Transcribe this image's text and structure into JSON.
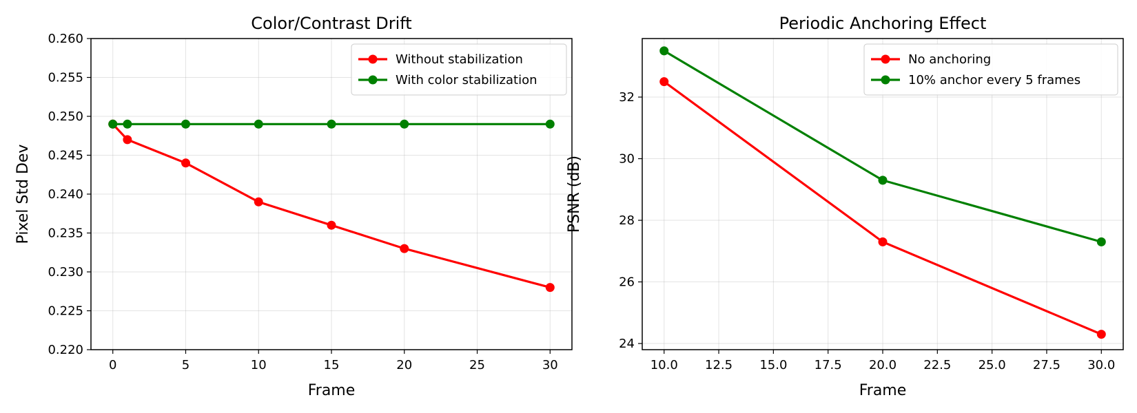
{
  "chart_data": [
    {
      "type": "line",
      "title": "Color/Contrast Drift",
      "xlabel": "Frame",
      "ylabel": "Pixel Std Dev",
      "xlim": [
        -1.5,
        31.5
      ],
      "ylim": [
        0.22,
        0.26
      ],
      "xticks": [
        0,
        5,
        10,
        15,
        20,
        25,
        30
      ],
      "xtick_labels": [
        "0",
        "5",
        "10",
        "15",
        "20",
        "25",
        "30"
      ],
      "yticks": [
        0.22,
        0.225,
        0.23,
        0.235,
        0.24,
        0.245,
        0.25,
        0.255,
        0.26
      ],
      "ytick_labels": [
        "0.220",
        "0.225",
        "0.230",
        "0.235",
        "0.240",
        "0.245",
        "0.250",
        "0.255",
        "0.260"
      ],
      "grid": true,
      "legend_position": "top-right",
      "series": [
        {
          "name": "Without stabilization",
          "color": "#ff0000",
          "x": [
            0,
            1,
            5,
            10,
            15,
            20,
            30
          ],
          "y": [
            0.249,
            0.247,
            0.244,
            0.239,
            0.236,
            0.233,
            0.228
          ]
        },
        {
          "name": "With color stabilization",
          "color": "#008000",
          "x": [
            0,
            1,
            5,
            10,
            15,
            20,
            30
          ],
          "y": [
            0.249,
            0.249,
            0.249,
            0.249,
            0.249,
            0.249,
            0.249
          ]
        }
      ]
    },
    {
      "type": "line",
      "title": "Periodic Anchoring Effect",
      "xlabel": "Frame",
      "ylabel": "PSNR (dB)",
      "xlim": [
        9.0,
        31.0
      ],
      "ylim": [
        23.8,
        33.9
      ],
      "xticks": [
        10,
        12.5,
        15,
        17.5,
        20,
        22.5,
        25,
        27.5,
        30
      ],
      "xtick_labels": [
        "10.0",
        "12.5",
        "15.0",
        "17.5",
        "20.0",
        "22.5",
        "25.0",
        "27.5",
        "30.0"
      ],
      "yticks": [
        24,
        26,
        28,
        30,
        32
      ],
      "ytick_labels": [
        "24",
        "26",
        "28",
        "30",
        "32"
      ],
      "grid": true,
      "legend_position": "top-right",
      "series": [
        {
          "name": "No anchoring",
          "color": "#ff0000",
          "x": [
            10,
            20,
            30
          ],
          "y": [
            32.5,
            27.3,
            24.3
          ]
        },
        {
          "name": "10% anchor every 5 frames",
          "color": "#008000",
          "x": [
            10,
            20,
            30
          ],
          "y": [
            33.5,
            29.3,
            27.3
          ]
        }
      ]
    }
  ]
}
